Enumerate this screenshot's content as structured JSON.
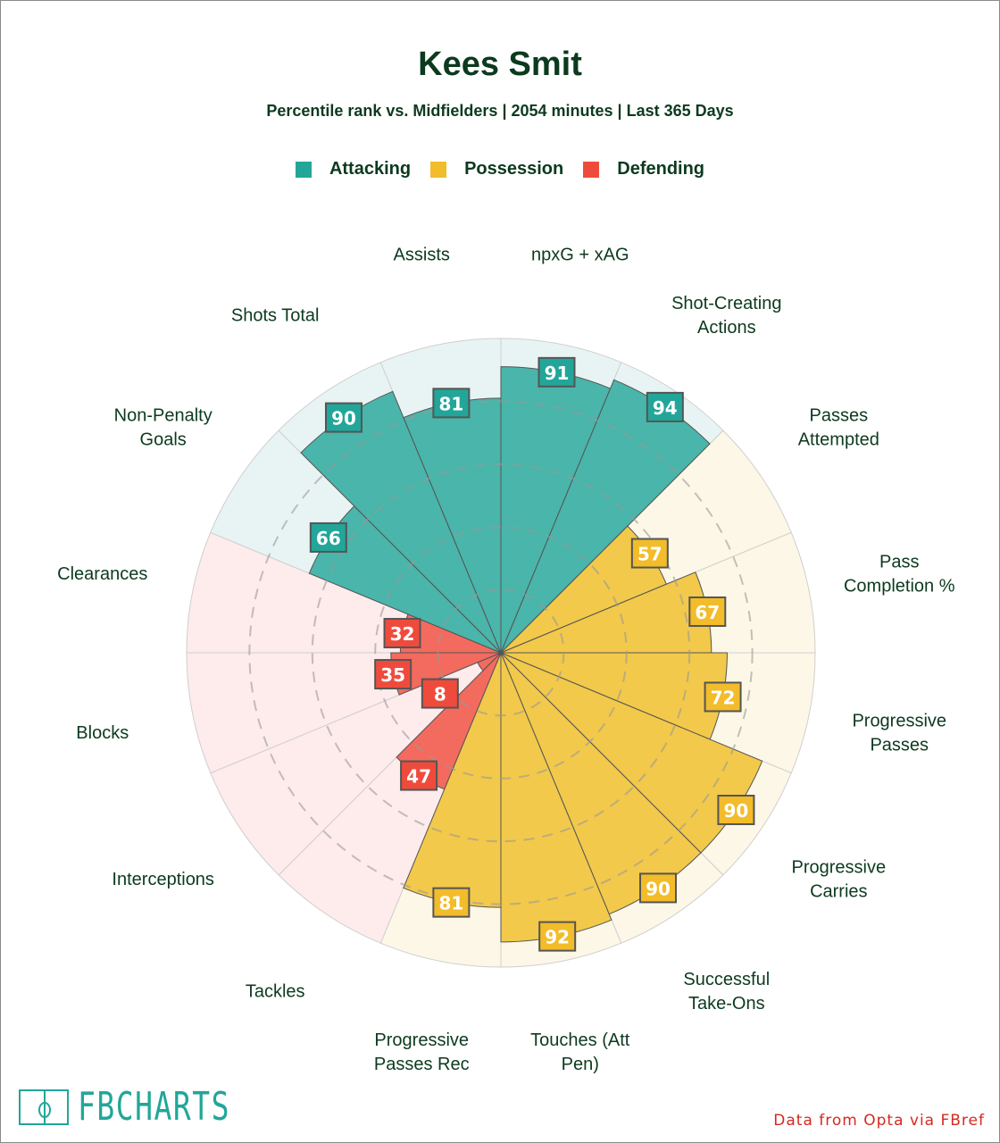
{
  "chart_data": {
    "type": "pizza",
    "title": "Kees Smit",
    "subtitle": "Percentile rank vs. Midfielders | 2054 minutes | Last 365 Days",
    "legend": [
      {
        "name": "Attacking",
        "color": "#22a699"
      },
      {
        "name": "Possession",
        "color": "#f2bc2a"
      },
      {
        "name": "Defending",
        "color": "#ef4b3c"
      }
    ],
    "range": [
      0,
      100
    ],
    "gridlines": [
      20,
      40,
      60,
      80
    ],
    "metrics": [
      {
        "label": [
          "npxG + xAG"
        ],
        "value": 91,
        "group": "Attacking"
      },
      {
        "label": [
          "Shot-Creating",
          "Actions"
        ],
        "value": 94,
        "group": "Attacking"
      },
      {
        "label": [
          "Passes",
          "Attempted"
        ],
        "value": 57,
        "group": "Possession"
      },
      {
        "label": [
          "Pass",
          "Completion %"
        ],
        "value": 67,
        "group": "Possession"
      },
      {
        "label": [
          "Progressive",
          "Passes"
        ],
        "value": 72,
        "group": "Possession"
      },
      {
        "label": [
          "Progressive",
          "Carries"
        ],
        "value": 90,
        "group": "Possession"
      },
      {
        "label": [
          "Successful",
          "Take-Ons"
        ],
        "value": 90,
        "group": "Possession"
      },
      {
        "label": [
          "Touches (Att",
          "Pen)"
        ],
        "value": 92,
        "group": "Possession"
      },
      {
        "label": [
          "Progressive",
          "Passes Rec"
        ],
        "value": 81,
        "group": "Possession"
      },
      {
        "label": [
          "Tackles"
        ],
        "value": 47,
        "group": "Defending"
      },
      {
        "label": [
          "Interceptions"
        ],
        "value": 8,
        "group": "Defending"
      },
      {
        "label": [
          "Blocks"
        ],
        "value": 35,
        "group": "Defending"
      },
      {
        "label": [
          "Clearances"
        ],
        "value": 32,
        "group": "Defending"
      },
      {
        "label": [
          "Non-Penalty",
          "Goals"
        ],
        "value": 66,
        "group": "Attacking"
      },
      {
        "label": [
          "Shots Total"
        ],
        "value": 90,
        "group": "Attacking"
      },
      {
        "label": [
          "Assists"
        ],
        "value": 81,
        "group": "Attacking"
      }
    ]
  },
  "footer": {
    "logo": "FBCHARTS",
    "credit": "Data from Opta via FBref"
  }
}
